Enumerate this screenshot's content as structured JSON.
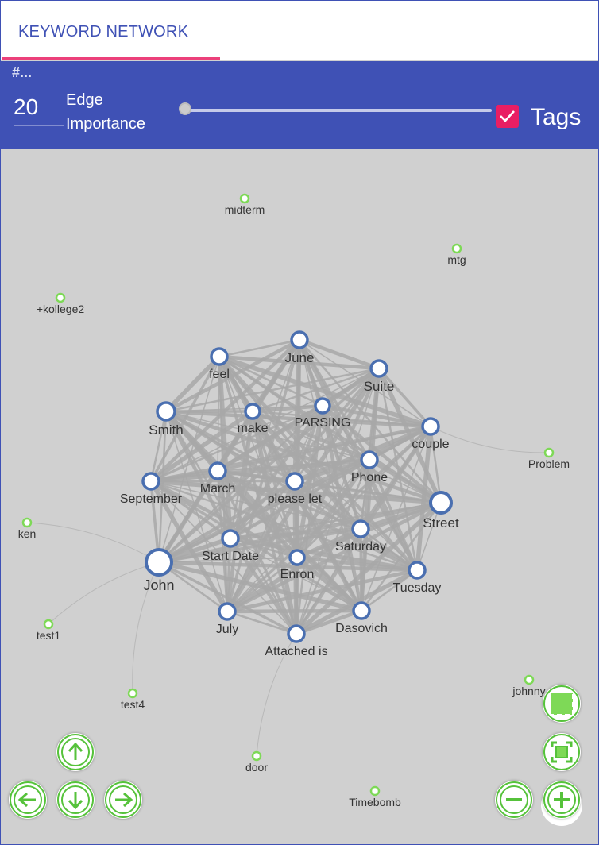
{
  "tab": {
    "label": "KEYWORD NETWORK"
  },
  "toolbar": {
    "hash": "#...",
    "count": "20",
    "edge_label_1": "Edge",
    "edge_label_2": "Importance",
    "tags_label": "Tags",
    "tags_checked": true,
    "slider_value": 0
  },
  "colors": {
    "primary": "#3f51b5",
    "accent": "#ec407a",
    "checkbox": "#e91e63",
    "node_border": "#4a6fb0",
    "tag_node": "#7ed957",
    "edge": "#a8a8a8",
    "canvas": "#d0d0d0"
  },
  "graph": {
    "keywords": [
      "John",
      "Street",
      "Smith",
      "June",
      "Suite",
      "feel",
      "make",
      "PARSING",
      "couple",
      "September",
      "March",
      "please let",
      "Phone",
      "Start Date",
      "Saturday",
      "Enron",
      "Tuesday",
      "July",
      "Dasovich",
      "Attached is"
    ],
    "tags": [
      "midterm",
      "mtg",
      "+kollege2",
      "Problem",
      "ken",
      "test1",
      "test4",
      "door",
      "Timebomb",
      "johnny"
    ]
  },
  "controls": {
    "up": "arrow-up-icon",
    "left": "arrow-left-icon",
    "down": "arrow-down-icon",
    "right": "arrow-right-icon",
    "fit": "fit-screen-icon",
    "zoom_out": "zoom-out-icon",
    "zoom_in": "zoom-in-icon",
    "select": "select-icon"
  }
}
